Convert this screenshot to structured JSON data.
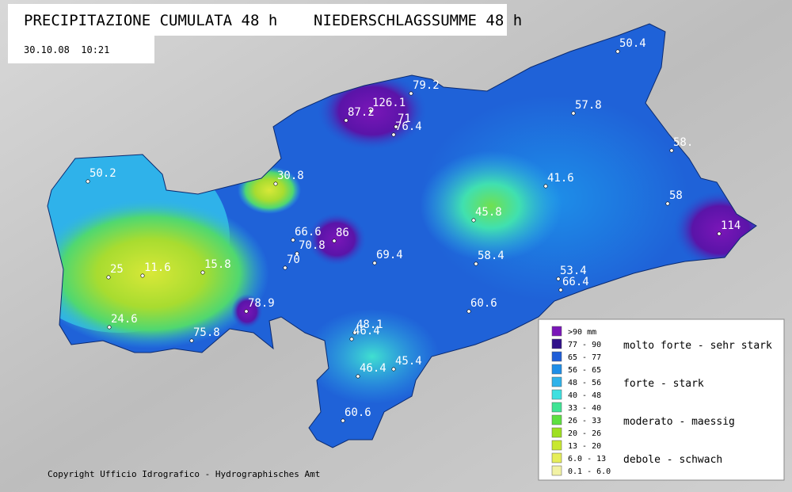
{
  "header": {
    "title": "PRECIPITAZIONE CUMULATA 48 h    NIEDERSCHLAGSSUMME 48 h",
    "date": "30.10.08  10:21"
  },
  "stations": [
    "50.4",
    "79.2",
    "126.1",
    "87.2",
    "71",
    "76.4",
    "57.8",
    "58.",
    "50.2",
    "30.8",
    "41.6",
    "58",
    "45.8",
    "114",
    "66.6",
    "86",
    "70.8",
    "69.4",
    "70",
    "58.4",
    "53.4",
    "66.4",
    "25",
    "11.6",
    "15.8",
    "60.6",
    "78.9",
    "24.6",
    "75.8",
    "48.1",
    "46.4",
    "46.4",
    "45.4",
    "60.6"
  ],
  "legend": {
    "classes": [
      {
        "label": ">90 mm",
        "color": "#7a16b8"
      },
      {
        "label": "77 - 90",
        "color": "#30108a"
      },
      {
        "label": "65 - 77",
        "color": "#1f5ed8"
      },
      {
        "label": "56 - 65",
        "color": "#1e8ee8"
      },
      {
        "label": "48 - 56",
        "color": "#2fb2ea"
      },
      {
        "label": "40 - 48",
        "color": "#3ee0e0"
      },
      {
        "label": "33 - 40",
        "color": "#40e494"
      },
      {
        "label": "26 - 33",
        "color": "#5ee040"
      },
      {
        "label": "20 - 26",
        "color": "#9ee020"
      },
      {
        "label": "13 - 20",
        "color": "#c8e830"
      },
      {
        "label": "6.0 - 13",
        "color": "#e6ee5a"
      },
      {
        "label": "0.1 - 6.0",
        "color": "#f2f2a4"
      }
    ],
    "categories": [
      "molto forte - sehr stark",
      "forte - stark",
      "moderato - maessig",
      "debole - schwach"
    ]
  },
  "footer": {
    "copyright": "Copyright Ufficio Idrografico - Hydrographisches Amt"
  }
}
